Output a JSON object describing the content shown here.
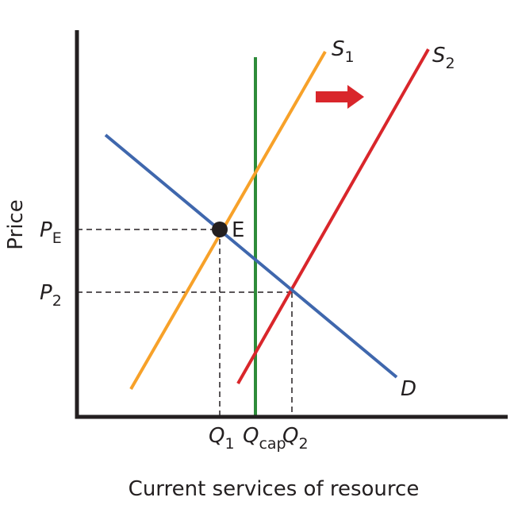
{
  "axes": {
    "y_label": "Price",
    "x_label": "Current services of resource"
  },
  "curves": {
    "s1": {
      "main": "S",
      "sub": "1"
    },
    "s2": {
      "main": "S",
      "sub": "2"
    },
    "d": {
      "main": "D"
    }
  },
  "point": {
    "label": "E"
  },
  "price_labels": [
    {
      "main": "P",
      "sub": "E"
    },
    {
      "main": "P",
      "sub": "2"
    }
  ],
  "quantity_labels": [
    {
      "main": "Q",
      "sub": "1"
    },
    {
      "main": "Q",
      "sub": "cap"
    },
    {
      "main": "Q",
      "sub": "2"
    }
  ]
}
